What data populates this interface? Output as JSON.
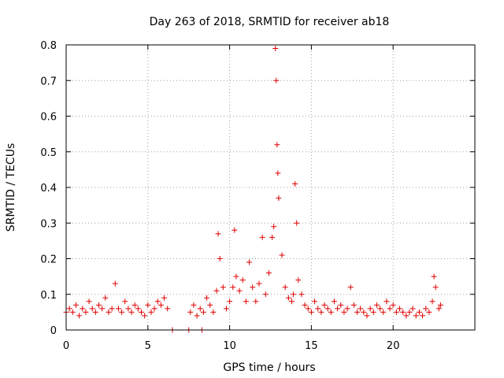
{
  "chart_data": {
    "type": "scatter",
    "title": "Day 263 of 2018, SRMTID for receiver ab18",
    "xlabel": "GPS time / hours",
    "ylabel": "SRMTID / TECUs",
    "xlim": [
      0,
      25
    ],
    "ylim": [
      0,
      0.8
    ],
    "xticks": [
      0,
      5,
      10,
      15,
      20
    ],
    "yticks": [
      0,
      0.1,
      0.2,
      0.3,
      0.4,
      0.5,
      0.6,
      0.7,
      0.8
    ],
    "ytick_labels": [
      "0",
      "0.1",
      "0.2",
      "0.3",
      "0.4",
      "0.5",
      "0.6",
      "0.7",
      "0.8"
    ],
    "grid": true,
    "marker": "+",
    "color": "#e00000",
    "series": [
      {
        "name": "ab18",
        "x": [
          0.0,
          0.2,
          0.4,
          0.6,
          0.8,
          1.0,
          1.2,
          1.4,
          1.6,
          1.8,
          2.0,
          2.2,
          2.4,
          2.6,
          2.8,
          3.0,
          3.2,
          3.4,
          3.6,
          3.8,
          4.0,
          4.2,
          4.4,
          4.6,
          4.8,
          5.0,
          5.2,
          5.4,
          5.6,
          5.8,
          6.0,
          6.2,
          6.5,
          7.5,
          8.3,
          7.6,
          7.8,
          8.0,
          8.2,
          8.4,
          8.6,
          8.8,
          9.0,
          9.2,
          9.3,
          9.4,
          9.6,
          9.8,
          10.0,
          10.2,
          10.3,
          10.4,
          10.6,
          10.8,
          11.0,
          11.2,
          11.4,
          11.6,
          11.8,
          12.0,
          12.2,
          12.4,
          12.6,
          12.7,
          12.8,
          12.85,
          12.9,
          12.95,
          13.0,
          13.2,
          13.4,
          13.6,
          13.8,
          13.9,
          14.0,
          14.1,
          14.2,
          14.4,
          14.6,
          14.8,
          15.0,
          15.2,
          15.4,
          15.6,
          15.8,
          16.0,
          16.2,
          16.4,
          16.6,
          16.8,
          17.0,
          17.2,
          17.4,
          17.6,
          17.8,
          18.0,
          18.2,
          18.4,
          18.6,
          18.8,
          19.0,
          19.2,
          19.4,
          19.6,
          19.8,
          20.0,
          20.2,
          20.4,
          20.6,
          20.8,
          21.0,
          21.2,
          21.4,
          21.6,
          21.8,
          22.0,
          22.2,
          22.4,
          22.5,
          22.6,
          22.8,
          22.9
        ],
        "y": [
          0.05,
          0.06,
          0.05,
          0.07,
          0.04,
          0.06,
          0.05,
          0.08,
          0.06,
          0.05,
          0.07,
          0.06,
          0.09,
          0.05,
          0.06,
          0.13,
          0.06,
          0.05,
          0.08,
          0.06,
          0.05,
          0.07,
          0.06,
          0.05,
          0.04,
          0.07,
          0.05,
          0.06,
          0.08,
          0.07,
          0.09,
          0.06,
          0.0,
          0.0,
          0.0,
          0.05,
          0.07,
          0.04,
          0.06,
          0.05,
          0.09,
          0.07,
          0.05,
          0.11,
          0.27,
          0.2,
          0.12,
          0.06,
          0.08,
          0.12,
          0.28,
          0.15,
          0.11,
          0.14,
          0.08,
          0.19,
          0.12,
          0.08,
          0.13,
          0.26,
          0.1,
          0.16,
          0.26,
          0.29,
          0.79,
          0.7,
          0.52,
          0.44,
          0.37,
          0.21,
          0.12,
          0.09,
          0.08,
          0.1,
          0.41,
          0.3,
          0.14,
          0.1,
          0.07,
          0.06,
          0.05,
          0.08,
          0.06,
          0.05,
          0.07,
          0.06,
          0.05,
          0.08,
          0.06,
          0.07,
          0.05,
          0.06,
          0.12,
          0.07,
          0.05,
          0.06,
          0.05,
          0.04,
          0.06,
          0.05,
          0.07,
          0.06,
          0.05,
          0.08,
          0.06,
          0.07,
          0.05,
          0.06,
          0.05,
          0.04,
          0.05,
          0.06,
          0.04,
          0.05,
          0.04,
          0.06,
          0.05,
          0.08,
          0.15,
          0.12,
          0.06,
          0.07
        ]
      }
    ]
  }
}
